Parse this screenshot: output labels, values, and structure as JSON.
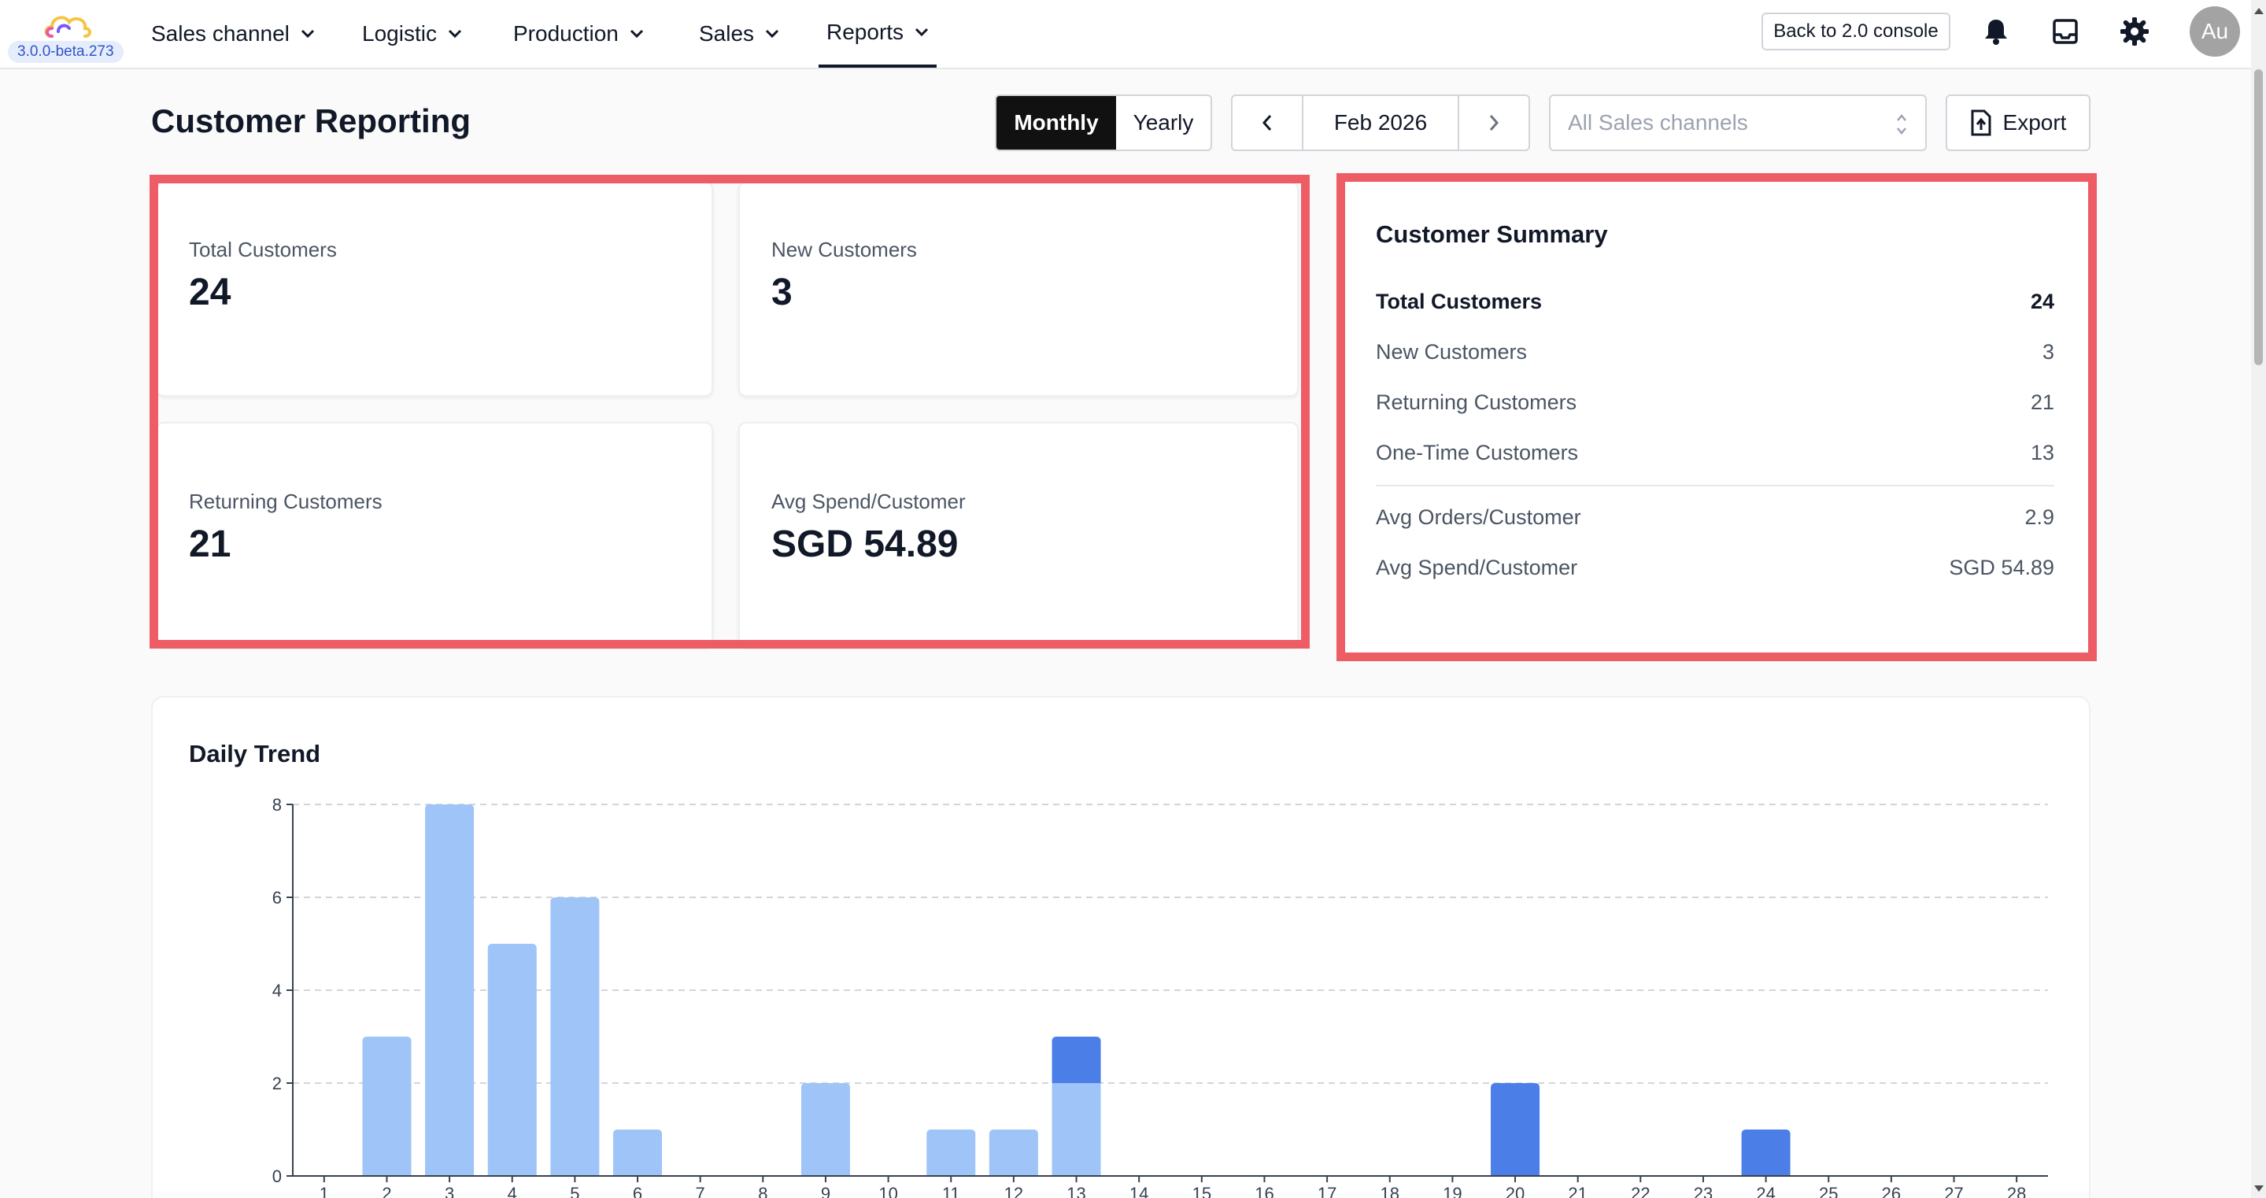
{
  "version": "3.0.0-beta.273",
  "nav": {
    "items": [
      {
        "label": "Sales channel"
      },
      {
        "label": "Logistic"
      },
      {
        "label": "Production"
      },
      {
        "label": "Sales"
      },
      {
        "label": "Reports"
      }
    ],
    "active": "Reports",
    "back_label": "Back to 2.0 console",
    "avatar_initials": "Au"
  },
  "header": {
    "title": "Customer Reporting",
    "period_options": [
      "Monthly",
      "Yearly"
    ],
    "selected_period": "Monthly",
    "current_period": "Feb 2026",
    "channel_placeholder": "All Sales channels",
    "export_label": "Export"
  },
  "stats": [
    {
      "label": "Total Customers",
      "value": "24"
    },
    {
      "label": "New Customers",
      "value": "3"
    },
    {
      "label": "Returning Customers",
      "value": "21"
    },
    {
      "label": "Avg Spend/Customer",
      "value": "SGD 54.89"
    }
  ],
  "summary": {
    "title": "Customer Summary",
    "rows": [
      {
        "label": "Total Customers",
        "value": "24"
      },
      {
        "label": "New Customers",
        "value": "3"
      },
      {
        "label": "Returning Customers",
        "value": "21"
      },
      {
        "label": "One-Time Customers",
        "value": "13"
      },
      {
        "label": "Avg Orders/Customer",
        "value": "2.9"
      },
      {
        "label": "Avg Spend/Customer",
        "value": "SGD 54.89"
      }
    ]
  },
  "colors": {
    "returning_bar": "#9ec4f8",
    "new_bar": "#4c7ee8",
    "highlight": "#ee5d65"
  },
  "chart_data": {
    "type": "bar",
    "title": "Daily Trend",
    "stacked": true,
    "categories": [
      "1",
      "2",
      "3",
      "4",
      "5",
      "6",
      "7",
      "8",
      "9",
      "10",
      "11",
      "12",
      "13",
      "14",
      "15",
      "16",
      "17",
      "18",
      "19",
      "20",
      "21",
      "22",
      "23",
      "24",
      "25",
      "26",
      "27",
      "28"
    ],
    "series": [
      {
        "values": [
          0,
          3,
          8,
          5,
          6,
          1,
          0,
          0,
          2,
          0,
          1,
          1,
          2,
          0,
          0,
          0,
          0,
          0,
          0,
          0,
          0,
          0,
          0,
          0,
          0,
          0,
          0,
          0
        ],
        "color": "#9ec4f8"
      },
      {
        "values": [
          0,
          0,
          0,
          0,
          0,
          0,
          0,
          0,
          0,
          0,
          0,
          0,
          1,
          0,
          0,
          0,
          0,
          0,
          0,
          2,
          0,
          0,
          0,
          1,
          0,
          0,
          0,
          0
        ],
        "color": "#4c7ee8"
      }
    ],
    "ylim": [
      0,
      8
    ],
    "yticks": [
      0,
      2,
      4,
      6,
      8
    ],
    "grid": true
  }
}
